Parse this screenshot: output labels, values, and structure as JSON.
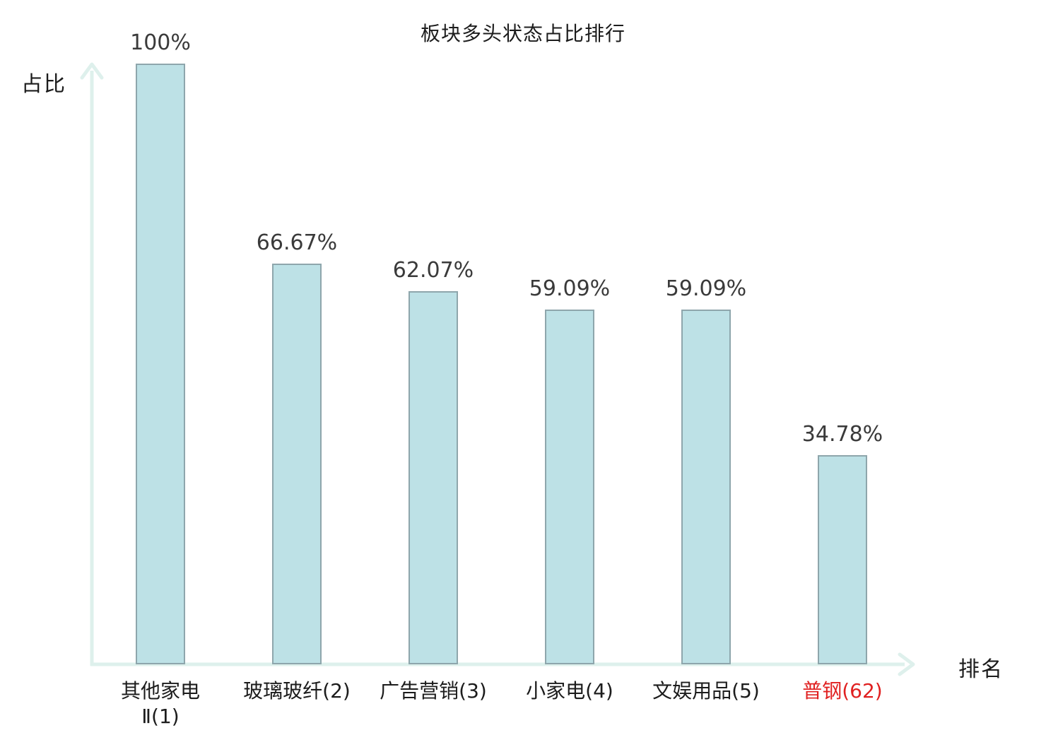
{
  "chart_data": {
    "type": "bar",
    "title": "板块多头状态占比排行",
    "xlabel": "排名",
    "ylabel": "占比",
    "ylim": [
      0,
      100
    ],
    "grid": false,
    "legend": false,
    "categories": [
      {
        "lines": [
          "其他家电",
          "Ⅱ(1)"
        ],
        "highlight": false
      },
      {
        "lines": [
          "玻璃玻纤(2)"
        ],
        "highlight": false
      },
      {
        "lines": [
          "广告营销(3)"
        ],
        "highlight": false
      },
      {
        "lines": [
          "小家电(4)"
        ],
        "highlight": false
      },
      {
        "lines": [
          "文娱用品(5)"
        ],
        "highlight": false
      },
      {
        "lines": [
          "普钢(62)"
        ],
        "highlight": true
      }
    ],
    "values": [
      100,
      66.67,
      62.07,
      59.09,
      59.09,
      34.78
    ],
    "value_labels": [
      "100%",
      "66.67%",
      "62.07%",
      "59.09%",
      "59.09%",
      "34.78%"
    ],
    "colors": {
      "bar_fill": "#bde1e6",
      "bar_border": "#8ea6ac",
      "axis": "#def0ec",
      "text": "#1c1c1c",
      "value_text": "#3a3a3a",
      "highlight_text": "#e02020"
    }
  }
}
